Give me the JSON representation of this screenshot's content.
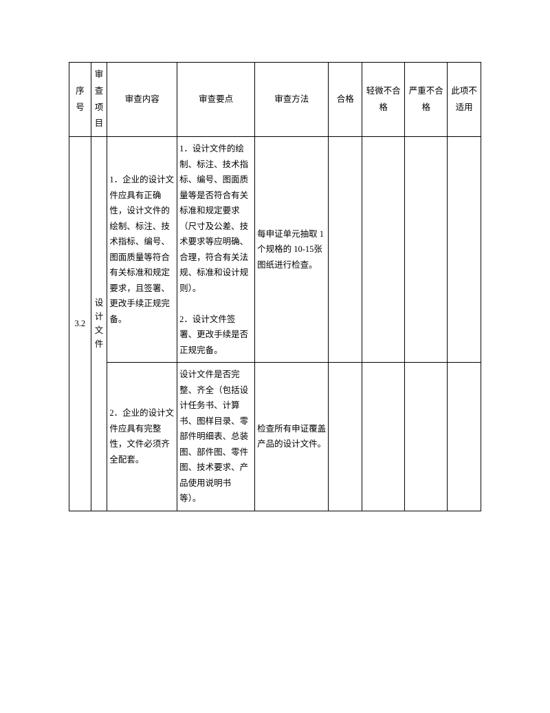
{
  "headers": {
    "seq": "序号",
    "item": "审查项目",
    "content": "审查内容",
    "points": "审查要点",
    "method": "审查方法",
    "pass": "合格",
    "minor": "轻微不合格",
    "major": "严重不合格",
    "na": "此项不适用"
  },
  "row": {
    "seq": "3.2",
    "item": "设计文件",
    "sub1": {
      "content": "1．企业的设计文件应具有正确性，设计文件的绘制、标注、技术指标、编号、图面质量等符合有关标准和规定要求，且签署、更改手续正规完备。",
      "points": "1．设计文件的绘制、标注、技术指标、编号、图面质量等是否符合有关标准和规定要求（尺寸及公差、技术要求等应明确、合理，符合有关法规、标准和设计规则）。\n\n2．设计文件签署、更改手续是否正规完备。",
      "method": "每申证单元抽取 1 个规格的 10-15张图纸进行检查。"
    },
    "sub2": {
      "content": "2．企业的设计文件应具有完整性，文件必须齐全配套。",
      "points": "设计文件是否完整、齐全（包括设计任务书、计算书、图样目录、零部件明细表、总装图、部件图、零件图、技术要求、产品使用说明书等）。",
      "method": "检查所有申证覆盖产品的设计文件。"
    }
  },
  "pageNumber": ""
}
